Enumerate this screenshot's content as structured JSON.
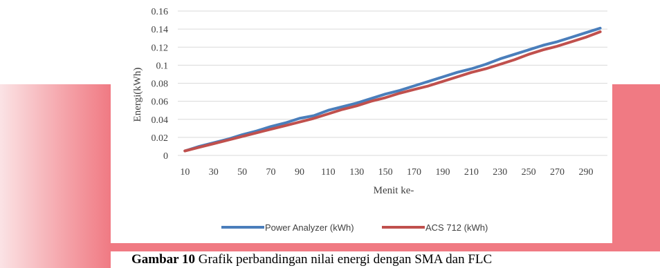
{
  "chart_data": {
    "type": "line",
    "xlabel": "Menit ke-",
    "ylabel": "Energi(kWh)",
    "x": [
      10,
      20,
      30,
      40,
      50,
      60,
      70,
      80,
      90,
      100,
      110,
      120,
      130,
      140,
      150,
      160,
      170,
      180,
      190,
      200,
      210,
      220,
      230,
      240,
      250,
      260,
      270,
      280,
      290,
      300
    ],
    "x_tick_labels": [
      "10",
      "30",
      "50",
      "70",
      "90",
      "110",
      "130",
      "150",
      "170",
      "190",
      "210",
      "230",
      "250",
      "270",
      "290"
    ],
    "y_tick_labels": [
      "0",
      "0.02",
      "0.04",
      "0.06",
      "0.08",
      "0.1",
      "0.12",
      "0.14",
      "0.16"
    ],
    "ylim": [
      0,
      0.16
    ],
    "grid": "horizontal",
    "legend_position": "bottom",
    "series": [
      {
        "name": "Power Analyzer (kWh)",
        "color": "#4a7ebb",
        "values": [
          0.005,
          0.01,
          0.014,
          0.018,
          0.023,
          0.027,
          0.032,
          0.036,
          0.041,
          0.044,
          0.05,
          0.054,
          0.058,
          0.063,
          0.068,
          0.072,
          0.077,
          0.082,
          0.087,
          0.092,
          0.096,
          0.101,
          0.107,
          0.112,
          0.117,
          0.122,
          0.126,
          0.131,
          0.136,
          0.141
        ]
      },
      {
        "name": "ACS 712 (kWh)",
        "color": "#c0504d",
        "values": [
          0.005,
          0.009,
          0.013,
          0.017,
          0.021,
          0.025,
          0.029,
          0.033,
          0.037,
          0.041,
          0.046,
          0.051,
          0.055,
          0.06,
          0.064,
          0.069,
          0.073,
          0.077,
          0.082,
          0.087,
          0.092,
          0.096,
          0.101,
          0.106,
          0.112,
          0.117,
          0.121,
          0.126,
          0.131,
          0.137
        ]
      }
    ]
  },
  "caption": {
    "label": "Gambar 10",
    "text": " Grafik perbandingan nilai energi dengan SMA dan FLC"
  }
}
